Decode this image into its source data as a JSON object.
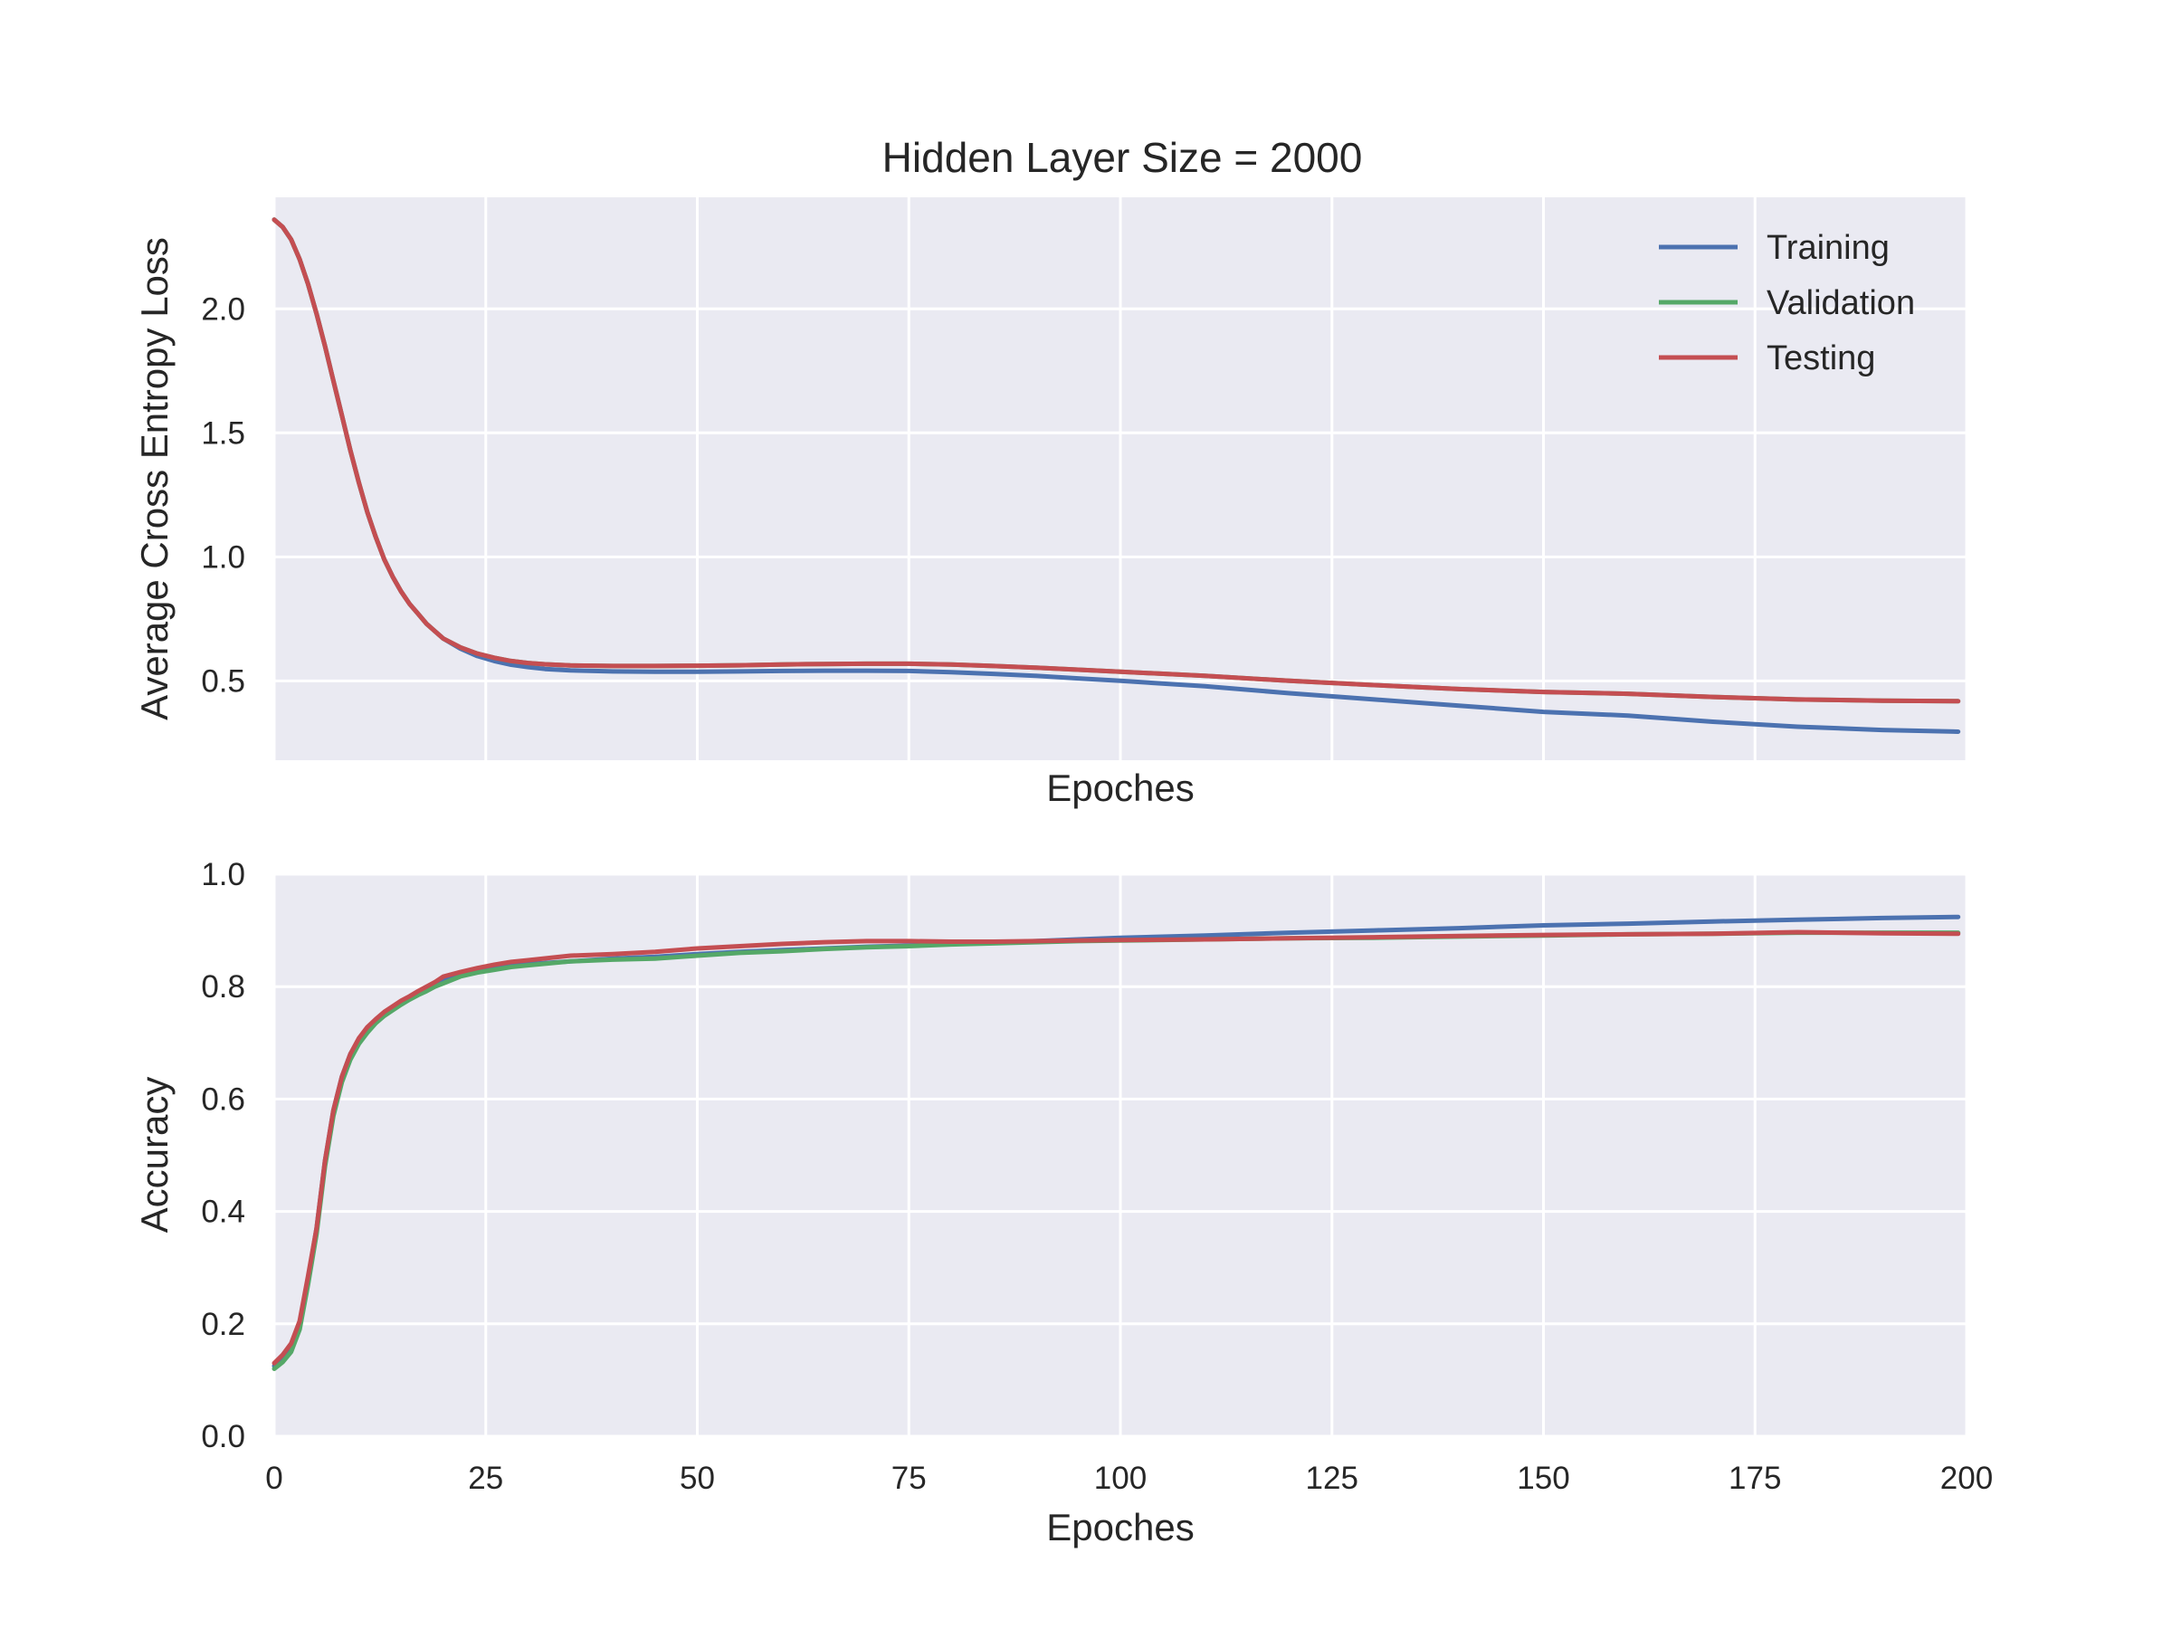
{
  "figure": {
    "title": "Hidden Layer Size = 2000"
  },
  "colors": {
    "background": "#ffffff",
    "axes_face": "#eaeaf2",
    "grid": "#ffffff",
    "training": "#4c72b0",
    "validation": "#55a868",
    "testing": "#c44e52"
  },
  "chart_data": [
    {
      "type": "line",
      "title": "Hidden Layer Size = 2000",
      "xlabel": "Epoches",
      "ylabel": "Average Cross Entropy Loss",
      "xlim": [
        0,
        200
      ],
      "ylim": [
        0.18,
        2.45
      ],
      "grid": true,
      "legend": "top-right",
      "x_ticks": [
        0,
        25,
        50,
        75,
        100,
        125,
        150,
        175,
        200
      ],
      "x_tick_labels_visible": false,
      "y_ticks": [
        0.5,
        1.0,
        1.5,
        2.0
      ],
      "y_tick_labels": [
        "0.5",
        "1.0",
        "1.5",
        "2.0"
      ],
      "x": [
        0,
        1,
        2,
        3,
        4,
        5,
        6,
        7,
        8,
        9,
        10,
        11,
        12,
        13,
        14,
        15,
        16,
        17,
        18,
        19,
        20,
        22,
        24,
        26,
        28,
        30,
        32,
        35,
        40,
        45,
        50,
        55,
        60,
        65,
        70,
        75,
        80,
        85,
        90,
        95,
        100,
        110,
        120,
        130,
        140,
        150,
        160,
        170,
        180,
        190,
        199
      ],
      "series": [
        {
          "name": "Training",
          "color": "#4c72b0",
          "values": [
            2.36,
            2.33,
            2.28,
            2.2,
            2.1,
            1.98,
            1.85,
            1.71,
            1.57,
            1.43,
            1.3,
            1.18,
            1.08,
            0.99,
            0.92,
            0.86,
            0.81,
            0.77,
            0.73,
            0.7,
            0.67,
            0.63,
            0.6,
            0.58,
            0.565,
            0.555,
            0.548,
            0.542,
            0.538,
            0.537,
            0.537,
            0.538,
            0.54,
            0.541,
            0.541,
            0.54,
            0.535,
            0.528,
            0.52,
            0.51,
            0.5,
            0.478,
            0.45,
            0.425,
            0.4,
            0.375,
            0.36,
            0.335,
            0.315,
            0.302,
            0.295
          ]
        },
        {
          "name": "Validation",
          "color": "#55a868",
          "values": [
            2.36,
            2.33,
            2.28,
            2.2,
            2.1,
            1.98,
            1.85,
            1.71,
            1.57,
            1.43,
            1.3,
            1.18,
            1.08,
            0.99,
            0.92,
            0.86,
            0.81,
            0.77,
            0.73,
            0.7,
            0.67,
            0.635,
            0.61,
            0.593,
            0.58,
            0.572,
            0.567,
            0.562,
            0.56,
            0.56,
            0.561,
            0.563,
            0.566,
            0.568,
            0.569,
            0.569,
            0.566,
            0.56,
            0.553,
            0.545,
            0.537,
            0.52,
            0.5,
            0.483,
            0.467,
            0.455,
            0.448,
            0.435,
            0.425,
            0.42,
            0.418
          ]
        },
        {
          "name": "Testing",
          "color": "#c44e52",
          "values": [
            2.36,
            2.33,
            2.28,
            2.2,
            2.1,
            1.98,
            1.85,
            1.71,
            1.57,
            1.43,
            1.3,
            1.18,
            1.08,
            0.99,
            0.92,
            0.86,
            0.81,
            0.77,
            0.73,
            0.7,
            0.67,
            0.635,
            0.61,
            0.593,
            0.58,
            0.572,
            0.567,
            0.562,
            0.56,
            0.56,
            0.561,
            0.563,
            0.566,
            0.568,
            0.569,
            0.569,
            0.566,
            0.56,
            0.553,
            0.545,
            0.537,
            0.52,
            0.5,
            0.483,
            0.467,
            0.455,
            0.448,
            0.435,
            0.425,
            0.42,
            0.418
          ]
        }
      ]
    },
    {
      "type": "line",
      "xlabel": "Epoches",
      "ylabel": "Accuracy",
      "xlim": [
        0,
        200
      ],
      "ylim": [
        0.0,
        1.0
      ],
      "grid": true,
      "x_ticks": [
        0,
        25,
        50,
        75,
        100,
        125,
        150,
        175,
        200
      ],
      "x_tick_labels": [
        "0",
        "25",
        "50",
        "75",
        "100",
        "125",
        "150",
        "175",
        "200"
      ],
      "y_ticks": [
        0.0,
        0.2,
        0.4,
        0.6,
        0.8,
        1.0
      ],
      "y_tick_labels": [
        "0.0",
        "0.2",
        "0.4",
        "0.6",
        "0.8",
        "1.0"
      ],
      "x": [
        0,
        1,
        2,
        3,
        4,
        5,
        6,
        7,
        8,
        9,
        10,
        11,
        12,
        13,
        14,
        15,
        16,
        17,
        18,
        19,
        20,
        22,
        24,
        26,
        28,
        30,
        35,
        40,
        45,
        50,
        55,
        60,
        65,
        70,
        75,
        80,
        85,
        90,
        95,
        100,
        110,
        120,
        130,
        140,
        150,
        160,
        170,
        180,
        190,
        199
      ],
      "series": [
        {
          "name": "Training",
          "color": "#4c72b0",
          "values": [
            0.125,
            0.14,
            0.16,
            0.2,
            0.28,
            0.37,
            0.49,
            0.58,
            0.64,
            0.68,
            0.705,
            0.725,
            0.74,
            0.752,
            0.762,
            0.772,
            0.78,
            0.788,
            0.795,
            0.802,
            0.81,
            0.82,
            0.826,
            0.832,
            0.837,
            0.84,
            0.845,
            0.85,
            0.853,
            0.858,
            0.862,
            0.865,
            0.868,
            0.871,
            0.873,
            0.876,
            0.878,
            0.881,
            0.884,
            0.887,
            0.891,
            0.896,
            0.9,
            0.904,
            0.909,
            0.912,
            0.916,
            0.919,
            0.922,
            0.924
          ]
        },
        {
          "name": "Validation",
          "color": "#55a868",
          "values": [
            0.12,
            0.132,
            0.15,
            0.19,
            0.27,
            0.36,
            0.48,
            0.57,
            0.63,
            0.67,
            0.698,
            0.718,
            0.735,
            0.748,
            0.758,
            0.768,
            0.777,
            0.785,
            0.792,
            0.8,
            0.806,
            0.818,
            0.825,
            0.83,
            0.835,
            0.838,
            0.845,
            0.848,
            0.85,
            0.855,
            0.86,
            0.863,
            0.867,
            0.87,
            0.872,
            0.875,
            0.877,
            0.879,
            0.881,
            0.882,
            0.884,
            0.886,
            0.887,
            0.889,
            0.891,
            0.893,
            0.894,
            0.896,
            0.896,
            0.896
          ]
        },
        {
          "name": "Testing",
          "color": "#c44e52",
          "values": [
            0.13,
            0.145,
            0.165,
            0.205,
            0.285,
            0.37,
            0.49,
            0.58,
            0.64,
            0.68,
            0.708,
            0.728,
            0.742,
            0.755,
            0.765,
            0.775,
            0.783,
            0.792,
            0.8,
            0.808,
            0.818,
            0.826,
            0.833,
            0.839,
            0.844,
            0.847,
            0.855,
            0.858,
            0.862,
            0.868,
            0.872,
            0.876,
            0.879,
            0.881,
            0.881,
            0.88,
            0.88,
            0.881,
            0.882,
            0.883,
            0.884,
            0.886,
            0.888,
            0.89,
            0.892,
            0.893,
            0.894,
            0.897,
            0.895,
            0.894
          ]
        }
      ]
    }
  ]
}
